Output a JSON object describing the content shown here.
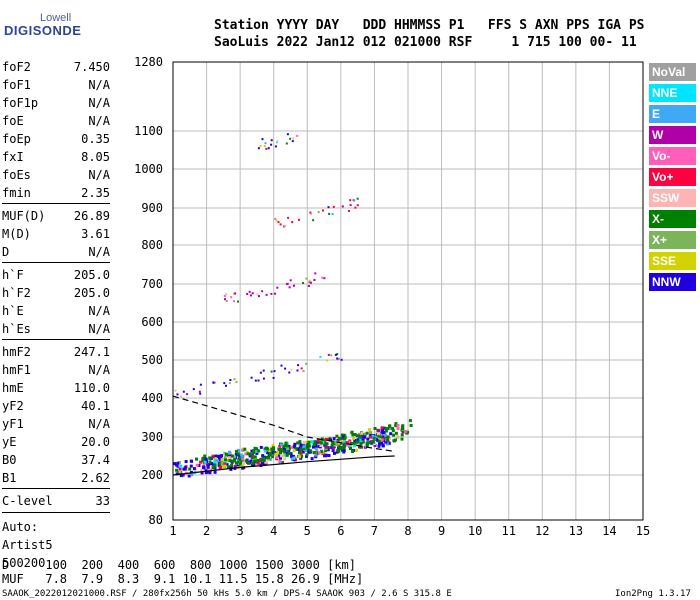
{
  "logo": {
    "top": "Lowell",
    "bottom": "DIGISONDE"
  },
  "header": {
    "line1": "Station YYYY DAY   DDD HHMMSS P1   FFS S AXN PPS IGA PS",
    "line2": "SaoLuis 2022 Jan12 012 021000 RSF     1 715 100 00- 11"
  },
  "params": [
    {
      "label": "foF2",
      "value": "7.450"
    },
    {
      "label": "foF1",
      "value": "N/A"
    },
    {
      "label": "foF1p",
      "value": "N/A"
    },
    {
      "label": "foE",
      "value": "N/A"
    },
    {
      "label": "foEp",
      "value": "0.35"
    },
    {
      "label": "fxI",
      "value": "8.05"
    },
    {
      "label": "foEs",
      "value": "N/A"
    },
    {
      "label": "fmin",
      "value": "2.35"
    },
    {
      "label": "MUF(D)",
      "value": "26.89"
    },
    {
      "label": "M(D)",
      "value": "3.61"
    },
    {
      "label": "D",
      "value": "N/A"
    },
    {
      "label": "h`F",
      "value": "205.0"
    },
    {
      "label": "h`F2",
      "value": "205.0"
    },
    {
      "label": "h`E",
      "value": "N/A"
    },
    {
      "label": "h`Es",
      "value": "N/A"
    },
    {
      "label": "hmF2",
      "value": "247.1"
    },
    {
      "label": "hmF1",
      "value": "N/A"
    },
    {
      "label": "hmE",
      "value": "110.0"
    },
    {
      "label": "yF2",
      "value": "40.1"
    },
    {
      "label": "yF1",
      "value": "N/A"
    },
    {
      "label": "yE",
      "value": "20.0"
    },
    {
      "label": "B0",
      "value": "37.4"
    },
    {
      "label": "B1",
      "value": "2.62"
    },
    {
      "label": "C-level",
      "value": "33"
    }
  ],
  "autoscaling": {
    "line1": "Auto:",
    "line2": "Artist5",
    "line3": "500200"
  },
  "legend": [
    {
      "label": "NoVal",
      "color": "#a0a0a0"
    },
    {
      "label": "NNE",
      "color": "#00e5ff"
    },
    {
      "label": "E",
      "color": "#3fa9f5"
    },
    {
      "label": "W",
      "color": "#b000a8"
    },
    {
      "label": "Vo-",
      "color": "#ff5fb8"
    },
    {
      "label": "Vo+",
      "color": "#ff0040"
    },
    {
      "label": "SSW",
      "color": "#ffb4b4"
    },
    {
      "label": "X-",
      "color": "#008000"
    },
    {
      "label": "X+",
      "color": "#7cb45a"
    },
    {
      "label": "SSE",
      "color": "#d2d200"
    },
    {
      "label": "NNW",
      "color": "#2000e0"
    }
  ],
  "muf_table": {
    "d_line": "D     100  200  400  600  800 1000 1500 3000 [km]",
    "muf_line": "MUF   7.8  7.9  8.3  9.1 10.1 11.5 15.8 26.9 [MHz]"
  },
  "footer": {
    "left": "SAAOK_2022012021000.RSF / 280fx256h 50 kHs 5.0 km / DPS-4 SAAOK 903 / 2.6 S 315.8 E",
    "right": "Ion2Png 1.3.17"
  },
  "chart_data": {
    "type": "scatter",
    "xlim": [
      1,
      15
    ],
    "x_ticks": [
      1,
      2,
      3,
      4,
      5,
      6,
      7,
      8,
      9,
      10,
      11,
      12,
      13,
      14,
      15
    ],
    "ylim": [
      80,
      1280
    ],
    "y_ticks": [
      80,
      200,
      300,
      400,
      500,
      600,
      700,
      800,
      900,
      1000,
      1100,
      1280
    ],
    "grid": true,
    "traces": [
      {
        "name": "O-trace F2",
        "color": "#2000e0",
        "points": [
          [
            1.0,
            215
          ],
          [
            1.5,
            222
          ],
          [
            2.0,
            228
          ],
          [
            2.5,
            235
          ],
          [
            3.0,
            242
          ],
          [
            3.5,
            248
          ],
          [
            4.0,
            255
          ],
          [
            4.5,
            262
          ],
          [
            5.0,
            268
          ],
          [
            5.5,
            275
          ],
          [
            6.0,
            282
          ],
          [
            6.5,
            290
          ],
          [
            7.0,
            298
          ],
          [
            7.45,
            305
          ]
        ]
      },
      {
        "name": "X-trace F2",
        "color": "#008000",
        "points": [
          [
            1.8,
            232
          ],
          [
            2.5,
            240
          ],
          [
            3.0,
            250
          ],
          [
            3.5,
            255
          ],
          [
            4.0,
            262
          ],
          [
            4.5,
            268
          ],
          [
            5.0,
            275
          ],
          [
            5.5,
            282
          ],
          [
            6.0,
            290
          ],
          [
            6.5,
            298
          ],
          [
            7.0,
            305
          ],
          [
            7.5,
            315
          ],
          [
            8.05,
            325
          ]
        ]
      },
      {
        "name": "2nd hop",
        "color": "#2000e0",
        "points": [
          [
            1.0,
            410
          ],
          [
            2.0,
            430
          ],
          [
            3.0,
            450
          ],
          [
            4.0,
            470
          ],
          [
            5.0,
            490
          ],
          [
            6.0,
            515
          ]
        ]
      },
      {
        "name": "3rd hop",
        "color": "#b000a8",
        "points": [
          [
            2.5,
            660
          ],
          [
            3.0,
            668
          ],
          [
            4.0,
            690
          ],
          [
            5.0,
            710
          ],
          [
            5.5,
            722
          ]
        ]
      },
      {
        "name": "4th hop",
        "color": "#ff0040",
        "points": [
          [
            4.0,
            860
          ],
          [
            5.0,
            880
          ],
          [
            6.0,
            905
          ],
          [
            6.5,
            915
          ]
        ]
      },
      {
        "name": "5th hop",
        "color": "#2000e0",
        "points": [
          [
            3.2,
            1060
          ],
          [
            4.0,
            1075
          ],
          [
            4.8,
            1095
          ]
        ]
      }
    ],
    "profile_solid": [
      [
        1.0,
        200
      ],
      [
        3.0,
        220
      ],
      [
        5.0,
        235
      ],
      [
        7.0,
        248
      ],
      [
        7.6,
        250
      ]
    ],
    "profile_dashed": [
      [
        1.0,
        405
      ],
      [
        2.0,
        380
      ],
      [
        3.0,
        355
      ],
      [
        4.0,
        330
      ],
      [
        5.0,
        300
      ],
      [
        6.0,
        285
      ],
      [
        7.0,
        270
      ],
      [
        7.6,
        262
      ]
    ]
  }
}
